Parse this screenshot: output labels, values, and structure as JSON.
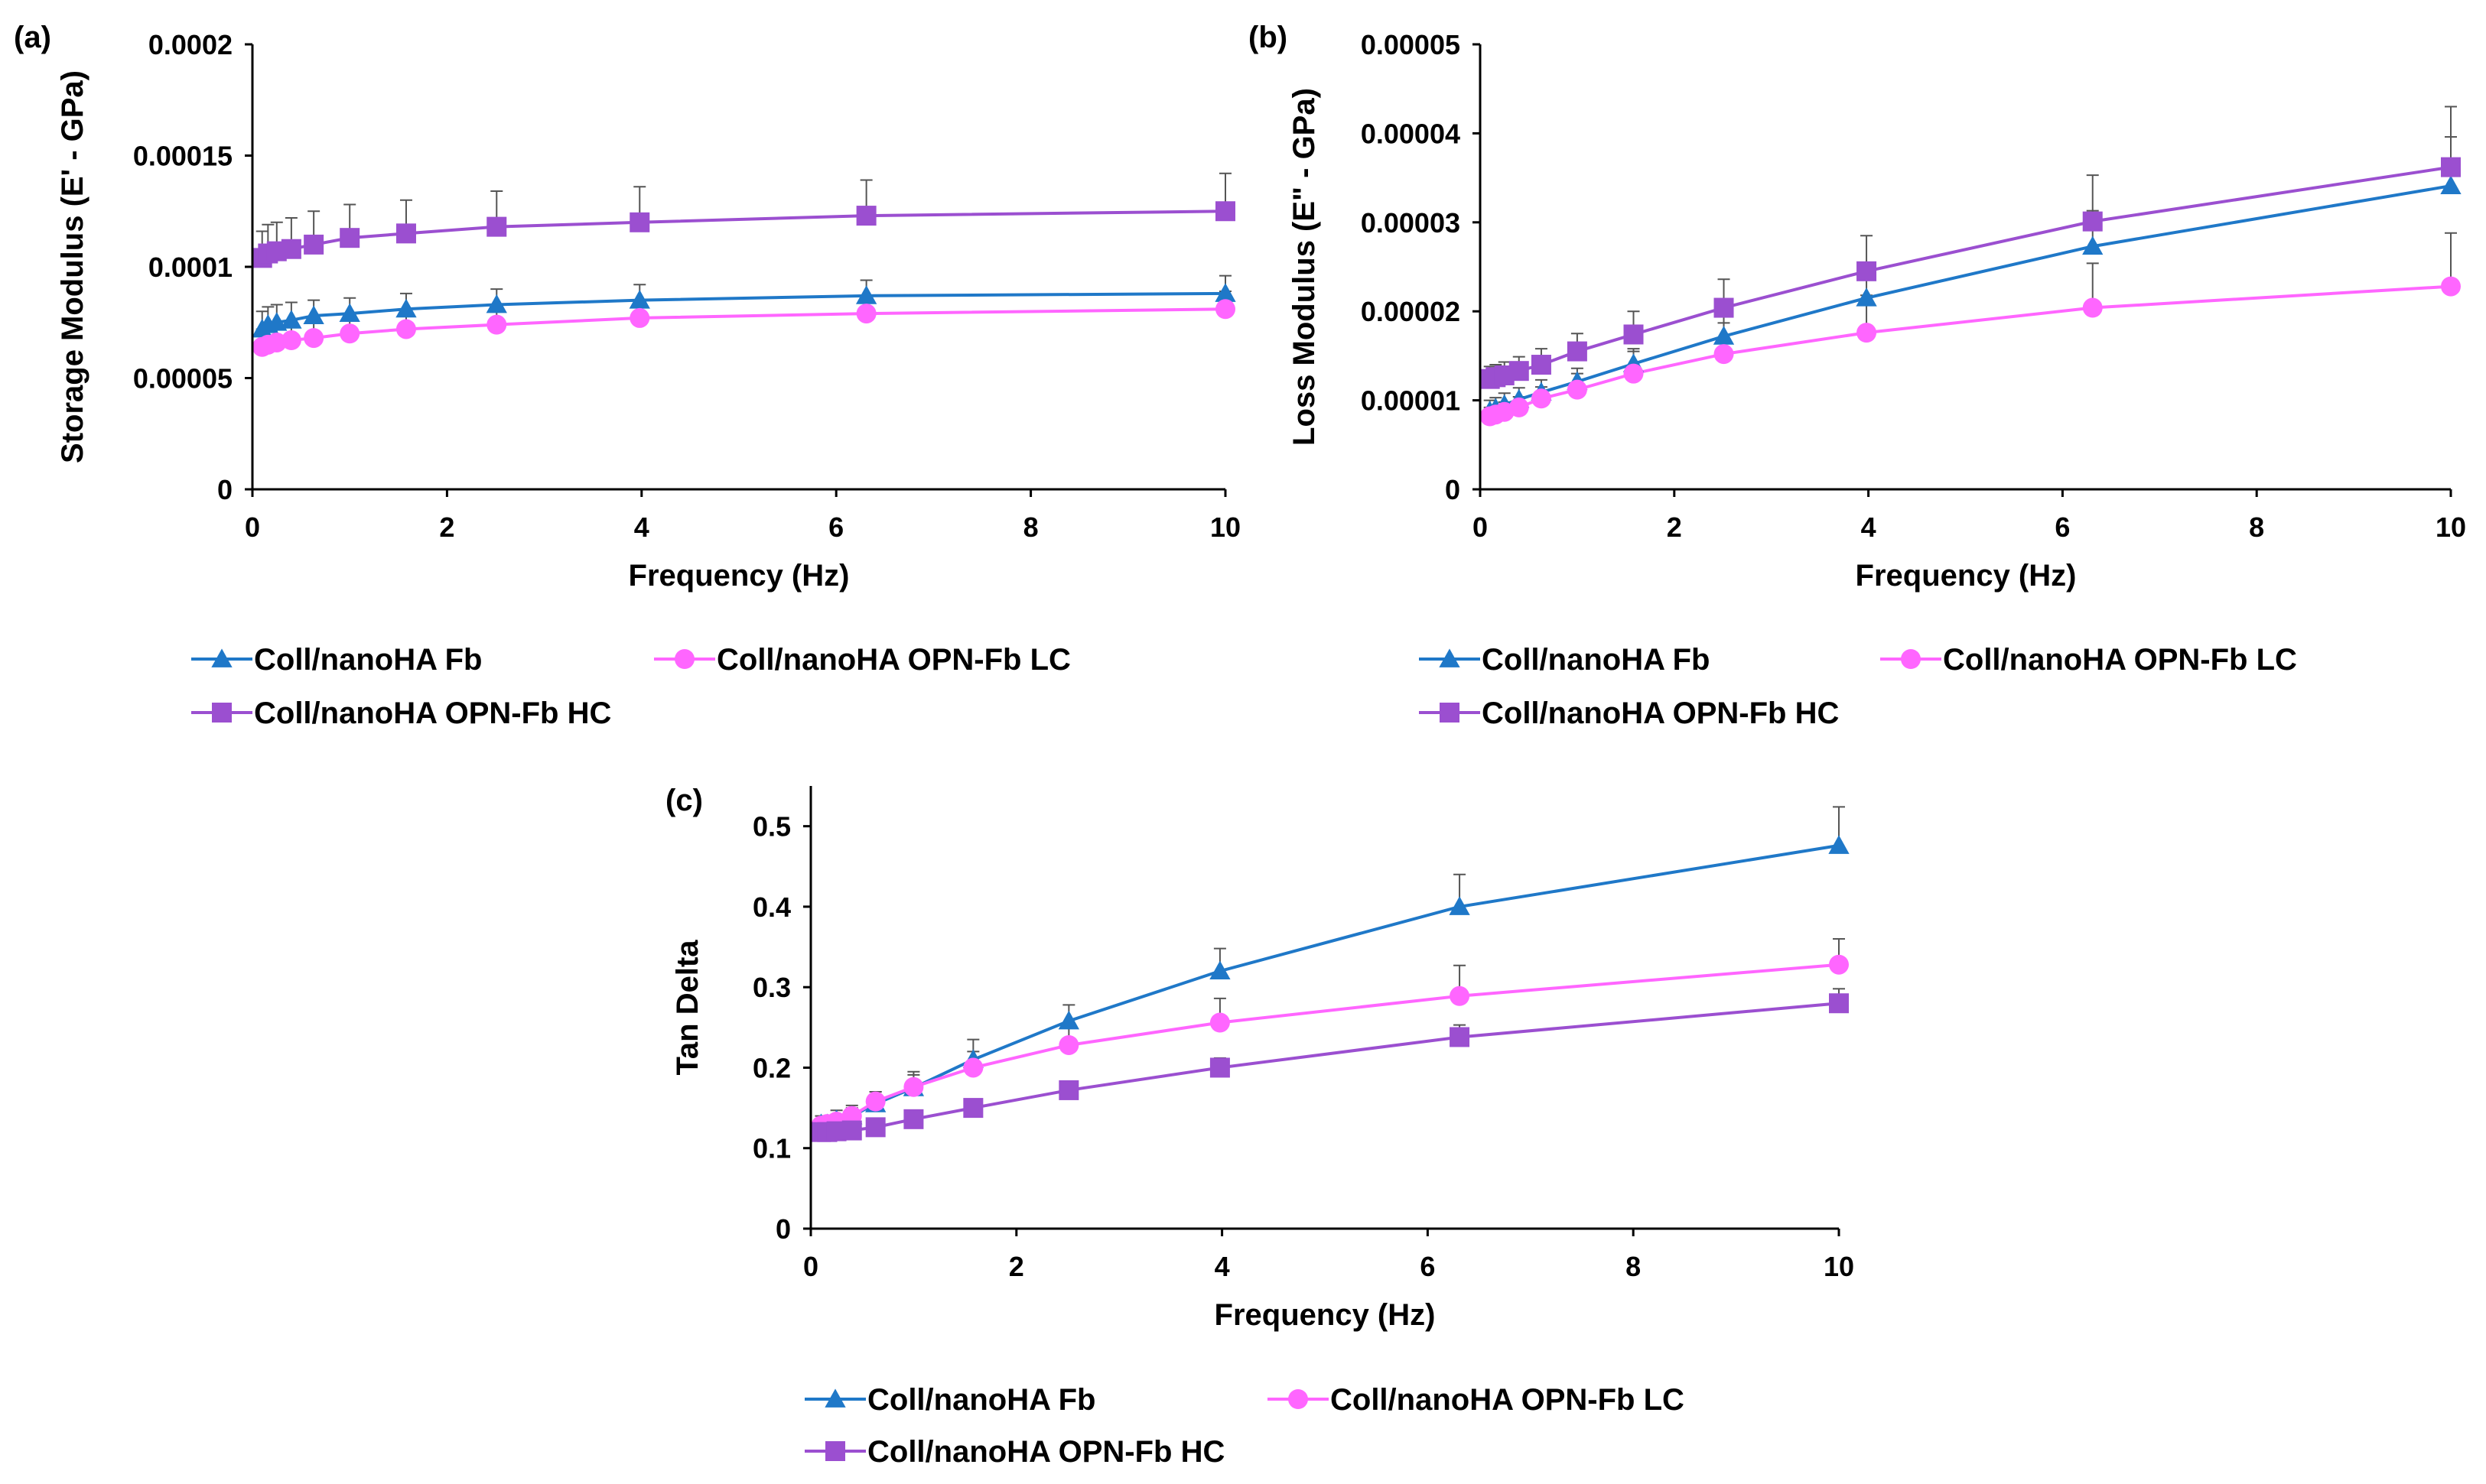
{
  "figure": {
    "series_styles": [
      {
        "name": "Coll/nanoHA Fb",
        "color": "#1f78c8",
        "marker": "triangle"
      },
      {
        "name": "Coll/nanoHA OPN-Fb LC",
        "color": "#ff66ff",
        "marker": "circle"
      },
      {
        "name": "Coll/nanoHA OPN-Fb HC",
        "color": "#9b4fd0",
        "marker": "square"
      }
    ],
    "error_bar_color": "#555555"
  },
  "chart_data": [
    {
      "type": "line",
      "panel": "(a)",
      "xlabel": "Frequency (Hz)",
      "ylabel": "Storage Modulus (E' - GPa)",
      "xlim": [
        0,
        10
      ],
      "ylim": [
        0,
        0.0002
      ],
      "xticks": [
        0,
        2,
        4,
        6,
        8,
        10
      ],
      "xtick_labels": [
        "0",
        "2",
        "4",
        "6",
        "8",
        "10"
      ],
      "yticks": [
        0,
        5e-05,
        0.0001,
        0.00015,
        0.0002
      ],
      "ytick_labels": [
        "0",
        "0.00005",
        "0.0001",
        "0.00015",
        "0.0002"
      ],
      "x": [
        0.1,
        0.16,
        0.25,
        0.4,
        0.63,
        1,
        1.58,
        2.51,
        3.98,
        6.31,
        10
      ],
      "legend": [
        "Coll/nanoHA Fb",
        "Coll/nanoHA OPN-Fb LC",
        "Coll/nanoHA OPN-Fb HC"
      ],
      "series": [
        {
          "name": "Coll/nanoHA Fb",
          "values": [
            7.2e-05,
            7.4e-05,
            7.5e-05,
            7.6e-05,
            7.8e-05,
            7.9e-05,
            8.1e-05,
            8.3e-05,
            8.5e-05,
            8.7e-05,
            8.8e-05
          ],
          "errors": [
            8e-06,
            8e-06,
            8e-06,
            8e-06,
            7e-06,
            7e-06,
            7e-06,
            7e-06,
            7e-06,
            7e-06,
            8e-06
          ]
        },
        {
          "name": "Coll/nanoHA OPN-Fb LC",
          "values": [
            6.4e-05,
            6.5e-05,
            6.6e-05,
            6.7e-05,
            6.8e-05,
            7e-05,
            7.2e-05,
            7.4e-05,
            7.7e-05,
            7.9e-05,
            8.1e-05
          ],
          "errors": [
            8e-06,
            8e-06,
            8e-06,
            8e-06,
            8e-06,
            8e-06,
            8e-06,
            8e-06,
            8e-06,
            8e-06,
            8e-06
          ]
        },
        {
          "name": "Coll/nanoHA OPN-Fb HC",
          "values": [
            0.000104,
            0.000106,
            0.000107,
            0.000108,
            0.00011,
            0.000113,
            0.000115,
            0.000118,
            0.00012,
            0.000123,
            0.000125
          ],
          "errors": [
            1.2e-05,
            1.3e-05,
            1.3e-05,
            1.4e-05,
            1.5e-05,
            1.5e-05,
            1.5e-05,
            1.6e-05,
            1.6e-05,
            1.6e-05,
            1.7e-05
          ]
        }
      ]
    },
    {
      "type": "line",
      "panel": "(b)",
      "xlabel": "Frequency (Hz)",
      "ylabel": "Loss Modulus (E\" - GPa)",
      "xlim": [
        0,
        10
      ],
      "ylim": [
        0,
        5e-05
      ],
      "xticks": [
        0,
        2,
        4,
        6,
        8,
        10
      ],
      "xtick_labels": [
        "0",
        "2",
        "4",
        "6",
        "8",
        "10"
      ],
      "yticks": [
        0,
        1e-05,
        2e-05,
        3e-05,
        4e-05,
        5e-05
      ],
      "ytick_labels": [
        "0",
        "0.00001",
        "0.00002",
        "0.00003",
        "0.00004",
        "0.00005"
      ],
      "x": [
        0.1,
        0.16,
        0.25,
        0.4,
        0.63,
        1,
        1.58,
        2.51,
        3.98,
        6.31,
        10
      ],
      "legend": [
        "Coll/nanoHA Fb",
        "Coll/nanoHA OPN-Fb LC",
        "Coll/nanoHA OPN-Fb HC"
      ],
      "series": [
        {
          "name": "Coll/nanoHA Fb",
          "values": [
            8.8e-06,
            9.1e-06,
            9.5e-06,
            1.01e-05,
            1.09e-05,
            1.21e-05,
            1.41e-05,
            1.72e-05,
            2.15e-05,
            2.73e-05,
            3.41e-05
          ],
          "errors": [
            1.2e-06,
            1.2e-06,
            1.3e-06,
            1.3e-06,
            1.4e-06,
            1.5e-06,
            1.7e-06,
            2.2e-06,
            3e-06,
            4e-06,
            5.5e-06
          ]
        },
        {
          "name": "Coll/nanoHA OPN-Fb LC",
          "values": [
            8.2e-06,
            8.4e-06,
            8.7e-06,
            9.2e-06,
            1.02e-05,
            1.12e-05,
            1.3e-05,
            1.52e-05,
            1.76e-05,
            2.04e-05,
            2.28e-05
          ],
          "errors": [
            1e-06,
            1e-06,
            1.1e-06,
            1.2e-06,
            1.3e-06,
            1.8e-06,
            2.5e-06,
            3.5e-06,
            4.2e-06,
            5e-06,
            6e-06
          ]
        },
        {
          "name": "Coll/nanoHA OPN-Fb HC",
          "values": [
            1.24e-05,
            1.26e-05,
            1.28e-05,
            1.33e-05,
            1.4e-05,
            1.55e-05,
            1.74e-05,
            2.04e-05,
            2.45e-05,
            3.01e-05,
            3.62e-05
          ],
          "errors": [
            1.4e-06,
            1.4e-06,
            1.5e-06,
            1.6e-06,
            1.8e-06,
            2e-06,
            2.6e-06,
            3.2e-06,
            4e-06,
            5.2e-06,
            6.8e-06
          ]
        }
      ]
    },
    {
      "type": "line",
      "panel": "(c)",
      "xlabel": "Frequency (Hz)",
      "ylabel": "Tan Delta",
      "xlim": [
        0,
        10
      ],
      "ylim": [
        0,
        0.55
      ],
      "xticks": [
        0,
        2,
        4,
        6,
        8,
        10
      ],
      "xtick_labels": [
        "0",
        "2",
        "4",
        "6",
        "8",
        "10"
      ],
      "yticks": [
        0,
        0.1,
        0.2,
        0.3,
        0.4,
        0.5
      ],
      "ytick_labels": [
        "0",
        "0.1",
        "0.2",
        "0.3",
        "0.4",
        "0.5"
      ],
      "x": [
        0.1,
        0.16,
        0.25,
        0.4,
        0.63,
        1,
        1.58,
        2.51,
        3.98,
        6.31,
        10
      ],
      "legend": [
        "Coll/nanoHA Fb",
        "Coll/nanoHA OPN-Fb LC",
        "Coll/nanoHA OPN-Fb HC"
      ],
      "series": [
        {
          "name": "Coll/nanoHA Fb",
          "values": [
            0.13,
            0.13,
            0.135,
            0.14,
            0.155,
            0.175,
            0.21,
            0.258,
            0.32,
            0.4,
            0.476
          ],
          "errors": [
            0.01,
            0.01,
            0.012,
            0.013,
            0.015,
            0.02,
            0.025,
            0.02,
            0.028,
            0.04,
            0.048
          ]
        },
        {
          "name": "Coll/nanoHA OPN-Fb LC",
          "values": [
            0.128,
            0.13,
            0.133,
            0.14,
            0.158,
            0.176,
            0.2,
            0.228,
            0.256,
            0.289,
            0.328
          ],
          "errors": [
            0.008,
            0.009,
            0.009,
            0.01,
            0.012,
            0.015,
            0.02,
            0.025,
            0.03,
            0.038,
            0.032
          ]
        },
        {
          "name": "Coll/nanoHA OPN-Fb HC",
          "values": [
            0.12,
            0.12,
            0.121,
            0.122,
            0.126,
            0.136,
            0.15,
            0.172,
            0.2,
            0.238,
            0.28
          ],
          "errors": [
            0.005,
            0.005,
            0.005,
            0.006,
            0.006,
            0.007,
            0.008,
            0.01,
            0.012,
            0.015,
            0.018
          ]
        }
      ]
    }
  ]
}
